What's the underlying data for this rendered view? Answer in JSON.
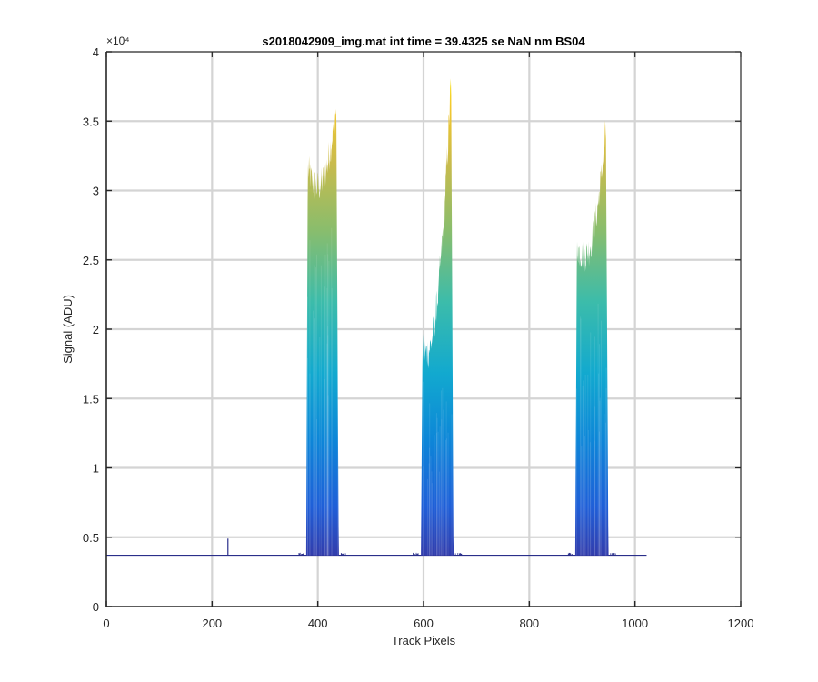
{
  "chart_data": {
    "type": "area",
    "title": "s2018042909_img.mat int time = 39.4325 se  NaN nm BS04",
    "xlabel": "Track Pixels",
    "ylabel": "Signal (ADU)",
    "xlim": [
      0,
      1200
    ],
    "ylim": [
      0,
      40000
    ],
    "x_ticks": [
      0,
      200,
      400,
      600,
      800,
      1000,
      1200
    ],
    "y_ticks": [
      0,
      5000,
      10000,
      15000,
      20000,
      25000,
      30000,
      35000,
      40000
    ],
    "y_tick_labels": [
      "0",
      "0.5",
      "1",
      "1.5",
      "2",
      "2.5",
      "3",
      "3.5",
      "4"
    ],
    "y_exponent_label": "×10⁴",
    "grid": true,
    "colormap": "parula",
    "baseline": {
      "x_start": 0,
      "x_end": 1022,
      "value": 3700
    },
    "spike": {
      "x": 230,
      "value": 4900
    },
    "peaks": [
      {
        "x_start": 378,
        "x_end": 440,
        "peak_x": 435,
        "peak_value": 36000,
        "left_shoulder": 31500
      },
      {
        "x_start": 595,
        "x_end": 657,
        "peak_x": 652,
        "peak_value": 38000,
        "left_shoulder": 18500
      },
      {
        "x_start": 887,
        "x_end": 950,
        "peak_x": 945,
        "peak_value": 34500,
        "left_shoulder": 26000
      }
    ],
    "colors": {
      "low": "#352a87",
      "mid_low": "#0d6ee0",
      "mid": "#0fb4d0",
      "mid_high": "#62bb6f",
      "high": "#d8ba44",
      "top": "#f9fb0e",
      "baseline": "#2a2f8a"
    }
  }
}
